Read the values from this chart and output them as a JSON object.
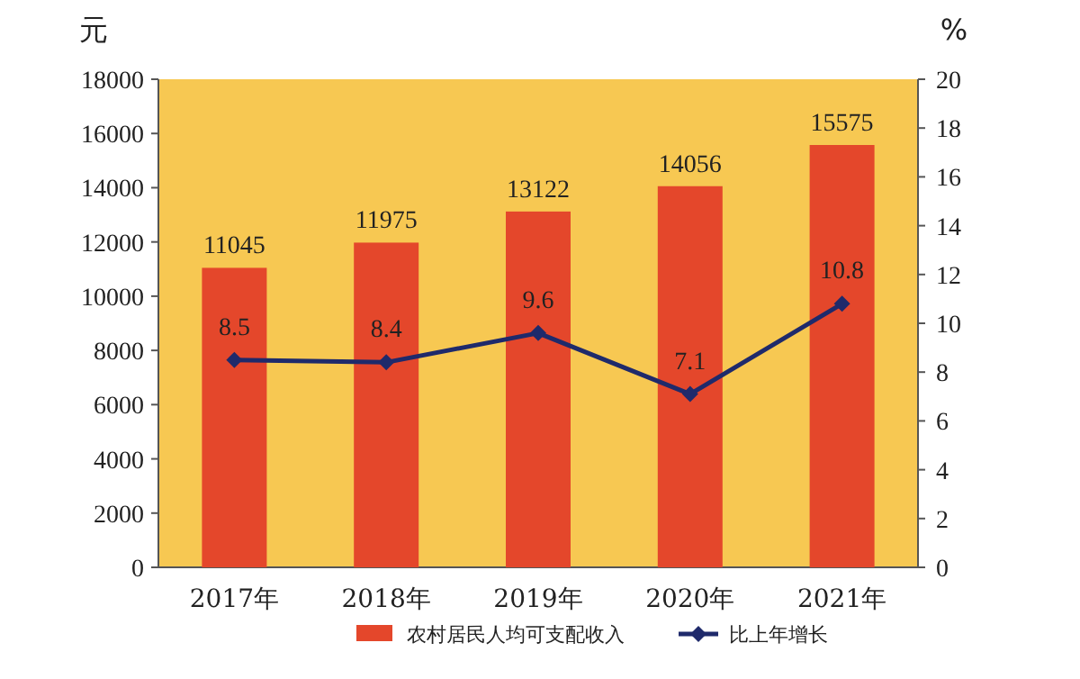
{
  "chart_data": {
    "type": "bar",
    "categories": [
      "2017年",
      "2018年",
      "2019年",
      "2020年",
      "2021年"
    ],
    "series": [
      {
        "name": "农村居民人均可支配收入",
        "color": "#e4472b",
        "values": [
          11045,
          11975,
          13122,
          14056,
          15575
        ]
      },
      {
        "name": "比上年增长",
        "type": "line",
        "axis": "y2",
        "color": "#1f2a6b",
        "values": [
          8.5,
          8.4,
          9.6,
          7.1,
          10.8
        ]
      }
    ],
    "ylabel": "元",
    "y2label": "%",
    "ylim": [
      0,
      18000
    ],
    "yticks": [
      0,
      2000,
      4000,
      6000,
      8000,
      10000,
      12000,
      14000,
      16000,
      18000
    ],
    "y2lim": [
      0,
      20
    ],
    "y2ticks": [
      0,
      2,
      4,
      6,
      8,
      10,
      12,
      14,
      16,
      18,
      20
    ],
    "data_labels": true,
    "legend": "bottom",
    "marker": "diamond"
  }
}
